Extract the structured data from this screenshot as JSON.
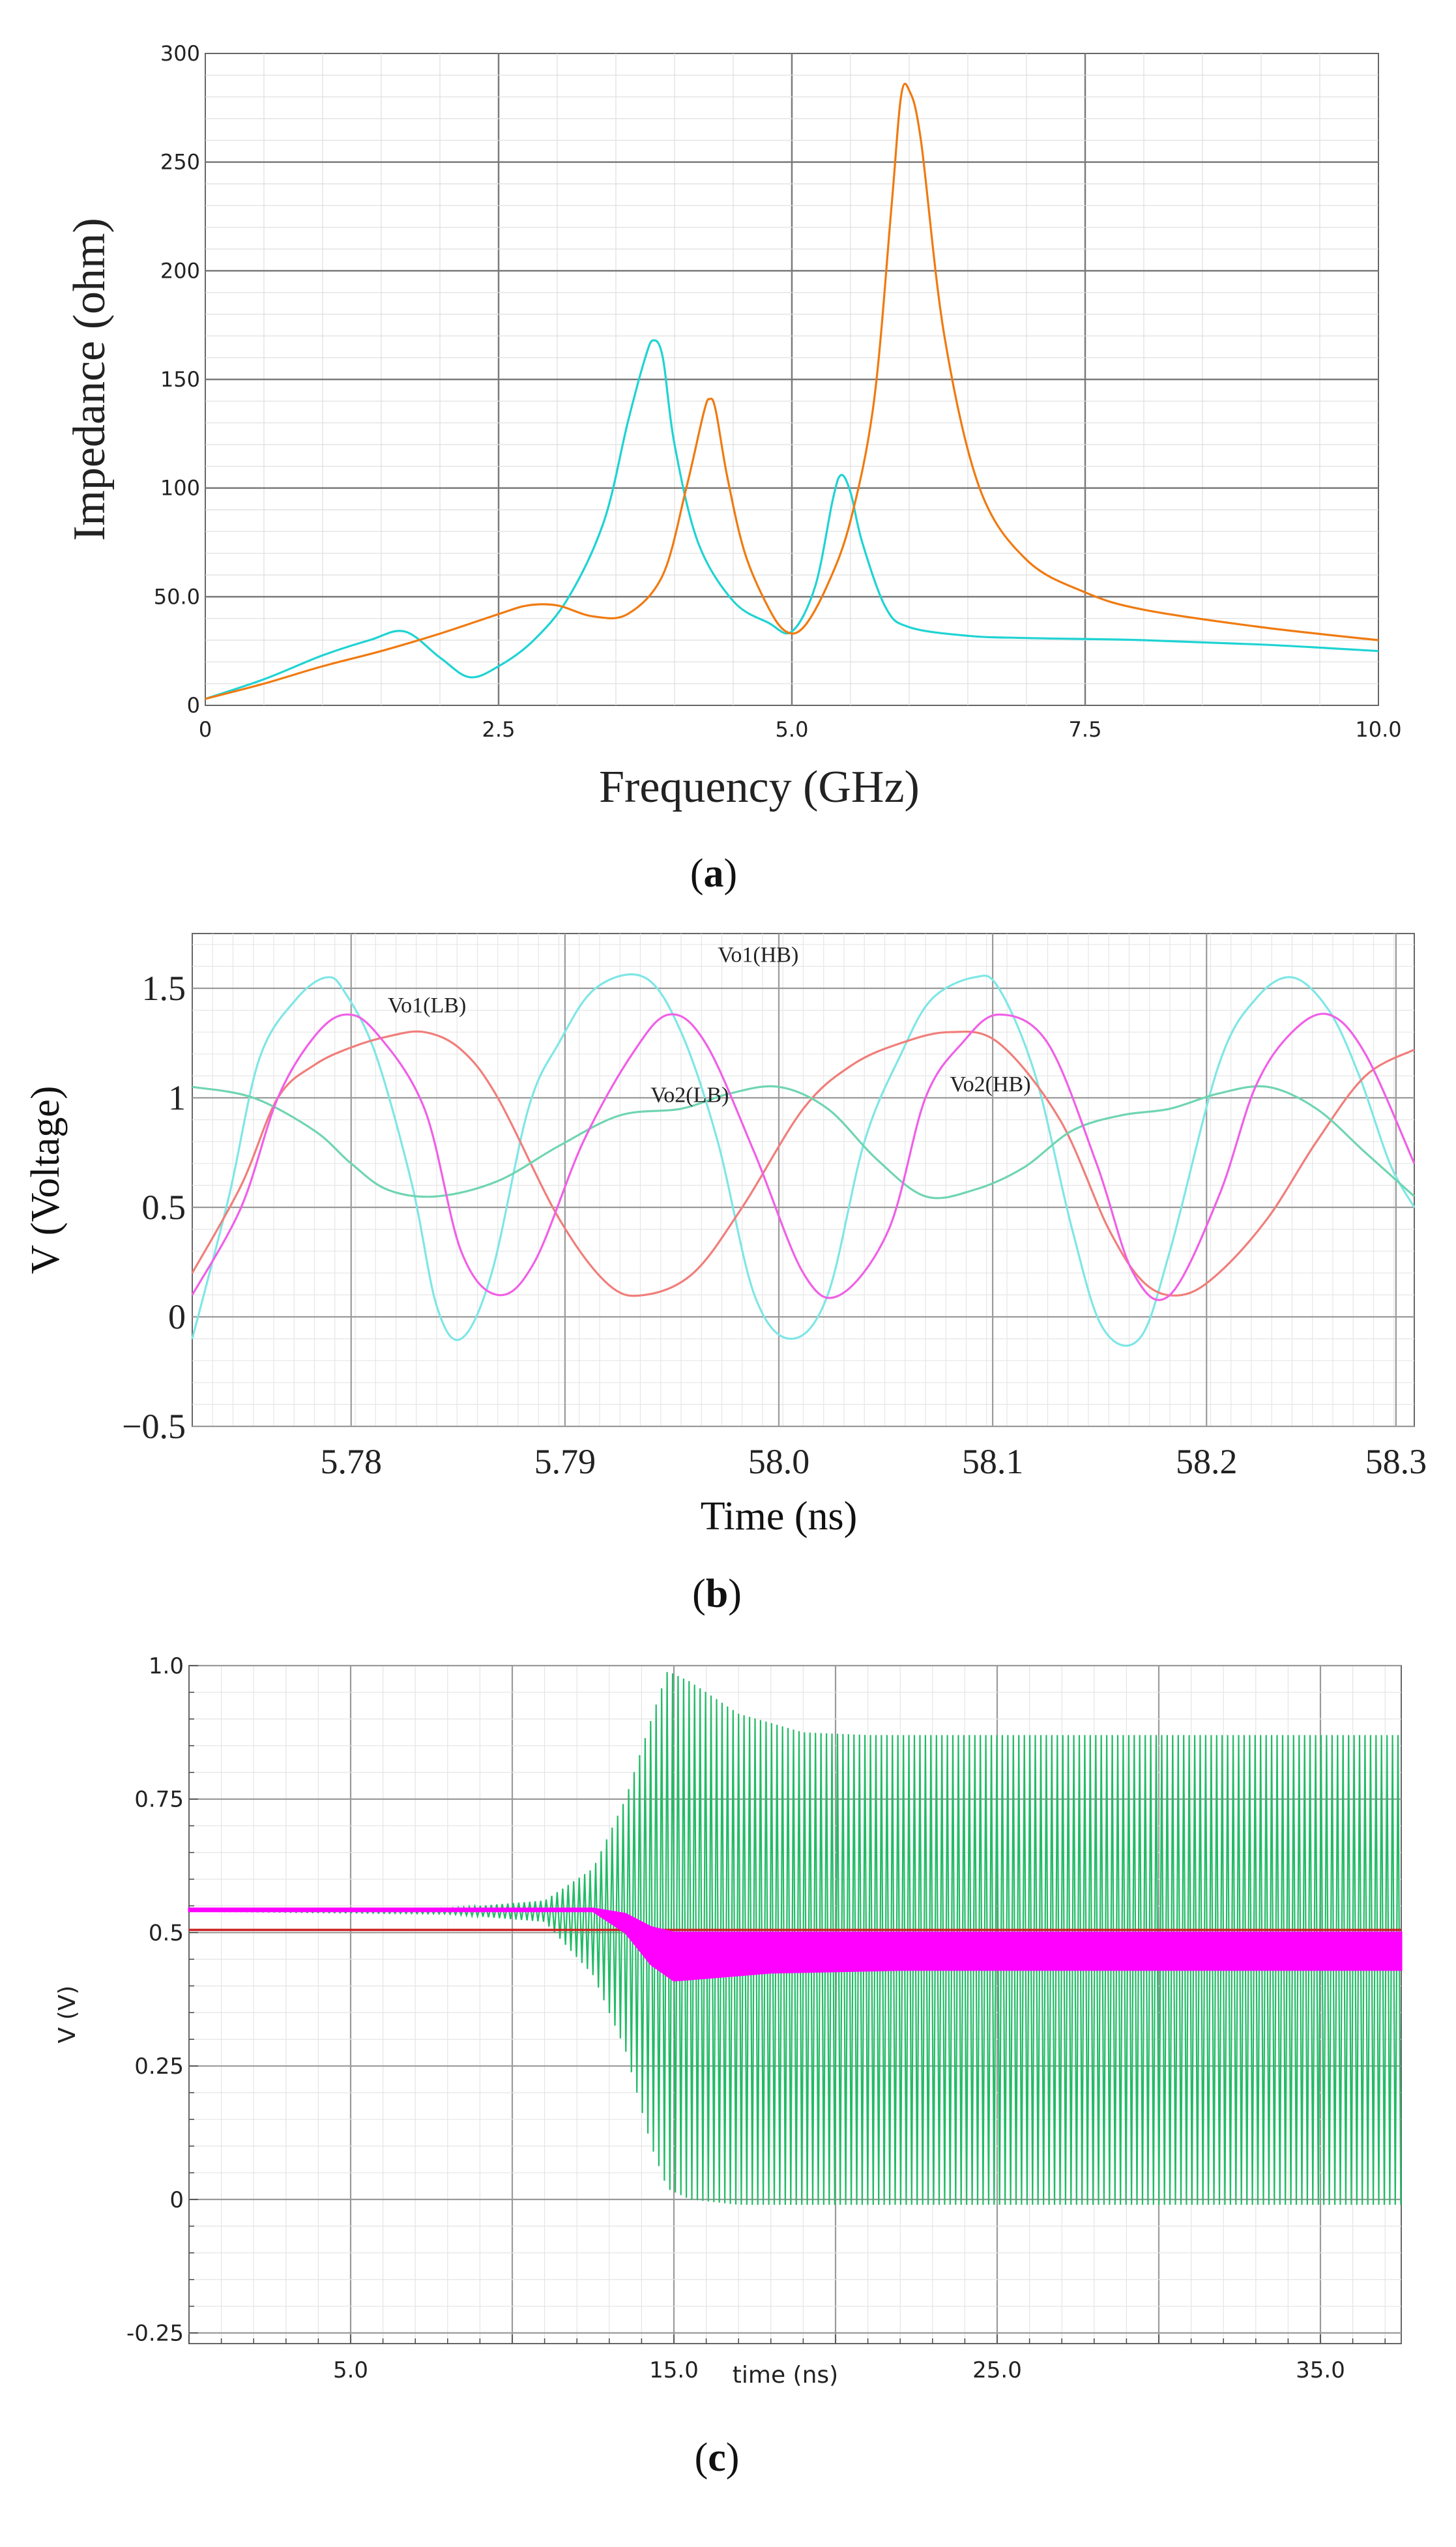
{
  "panels": {
    "a": {
      "caption_letter": "a",
      "chart_data": {
        "type": "line",
        "title": "",
        "xlabel": "Frequency (GHz)",
        "ylabel": "Impedance (ohm)",
        "xlim": [
          0,
          10
        ],
        "ylim": [
          0,
          300
        ],
        "xticks": [
          "0",
          "2.5",
          "5.0",
          "7.5",
          "10.0"
        ],
        "yticks": [
          "0",
          "50.0",
          "100",
          "150",
          "200",
          "250",
          "300"
        ],
        "xtick_values": [
          0,
          2.5,
          5,
          7.5,
          10
        ],
        "ytick_values": [
          0,
          50,
          100,
          150,
          200,
          250,
          300
        ],
        "grid": true,
        "series": [
          {
            "color": "#1fd3d3",
            "x": [
              0,
              0.5,
              1.0,
              1.4,
              1.7,
              2.0,
              2.25,
              2.5,
              2.8,
              3.1,
              3.4,
              3.6,
              3.75,
              3.82,
              3.9,
              4.0,
              4.2,
              4.5,
              4.8,
              5.0,
              5.2,
              5.35,
              5.42,
              5.5,
              5.6,
              5.8,
              6.0,
              6.5,
              7.0,
              8.0,
              9.0,
              10.0
            ],
            "y": [
              3,
              12,
              23,
              30,
              34,
              22,
              13,
              18,
              30,
              50,
              85,
              130,
              160,
              168,
              160,
              120,
              75,
              48,
              38,
              34,
              55,
              95,
              106,
              98,
              75,
              45,
              36,
              32,
              31,
              30,
              28,
              25
            ]
          },
          {
            "color": "#f07a10",
            "x": [
              0,
              0.5,
              1.0,
              1.5,
              2.0,
              2.5,
              2.75,
              3.0,
              3.3,
              3.6,
              3.9,
              4.1,
              4.25,
              4.3,
              4.35,
              4.45,
              4.6,
              4.8,
              4.95,
              5.1,
              5.3,
              5.5,
              5.7,
              5.85,
              5.93,
              6.0,
              6.1,
              6.3,
              6.6,
              7.0,
              7.5,
              8.0,
              9.0,
              10.0
            ],
            "y": [
              3,
              10,
              18,
              25,
              33,
              42,
              46,
              46,
              41,
              42,
              60,
              100,
              135,
              141,
              136,
              105,
              70,
              45,
              34,
              36,
              55,
              85,
              140,
              230,
              280,
              283,
              260,
              170,
              100,
              67,
              52,
              44,
              36,
              30
            ]
          }
        ]
      }
    },
    "b": {
      "caption_letter": "b",
      "chart_data": {
        "type": "line",
        "title": "",
        "xlabel": "Time (ns)",
        "ylabel": "V (Voltage)",
        "xlim": [
          0,
          1
        ],
        "ylim": [
          -0.5,
          1.75
        ],
        "xticks": [
          "5.78",
          "5.79",
          "58.0",
          "58.1",
          "58.2",
          "58.3"
        ],
        "xtick_values": [
          0.13,
          0.305,
          0.48,
          0.655,
          0.83,
          0.985
        ],
        "yticks": [
          "−0.5",
          "0",
          "0.5",
          "1",
          "1.5"
        ],
        "ytick_values": [
          -0.5,
          0,
          0.5,
          1,
          1.5
        ],
        "grid": true,
        "series": [
          {
            "name": "Vo1(HB)",
            "color": "#7fe6e6",
            "x": [
              0.0,
              0.03,
              0.055,
              0.085,
              0.11,
              0.125,
              0.15,
              0.18,
              0.2,
              0.22,
              0.245,
              0.275,
              0.3,
              0.33,
              0.37,
              0.4,
              0.43,
              0.46,
              0.49,
              0.52,
              0.55,
              0.58,
              0.605,
              0.64,
              0.66,
              0.69,
              0.72,
              0.745,
              0.775,
              0.8,
              0.84,
              0.87,
              0.9,
              0.93,
              0.955,
              0.98,
              1.0
            ],
            "y": [
              -0.1,
              0.55,
              1.18,
              1.45,
              1.55,
              1.48,
              1.2,
              0.6,
              0.05,
              -0.1,
              0.2,
              0.95,
              1.25,
              1.5,
              1.55,
              1.3,
              0.8,
              0.1,
              -0.1,
              0.1,
              0.8,
              1.2,
              1.45,
              1.55,
              1.5,
              1.1,
              0.4,
              -0.05,
              -0.1,
              0.3,
              1.15,
              1.45,
              1.55,
              1.4,
              1.1,
              0.7,
              0.5
            ]
          },
          {
            "name": "Vo1(LB)",
            "color": "#f07e7a",
            "x": [
              0.0,
              0.04,
              0.07,
              0.1,
              0.13,
              0.16,
              0.19,
              0.22,
              0.25,
              0.3,
              0.34,
              0.37,
              0.41,
              0.45,
              0.5,
              0.54,
              0.58,
              0.62,
              0.66,
              0.71,
              0.75,
              0.78,
              0.81,
              0.84,
              0.88,
              0.92,
              0.96,
              1.0
            ],
            "y": [
              0.2,
              0.6,
              1.0,
              1.15,
              1.23,
              1.28,
              1.3,
              1.22,
              1.0,
              0.45,
              0.15,
              0.1,
              0.2,
              0.5,
              0.95,
              1.15,
              1.25,
              1.3,
              1.25,
              0.9,
              0.4,
              0.15,
              0.1,
              0.2,
              0.45,
              0.8,
              1.1,
              1.22
            ]
          },
          {
            "name": "Vo2(LB)",
            "color": "#6fd5b0",
            "x": [
              0.0,
              0.05,
              0.1,
              0.13,
              0.16,
              0.2,
              0.25,
              0.3,
              0.35,
              0.4,
              0.44,
              0.48,
              0.52,
              0.56,
              0.6,
              0.64,
              0.68,
              0.72,
              0.76,
              0.8,
              0.84,
              0.88,
              0.92,
              0.96,
              1.0
            ],
            "y": [
              1.05,
              1.0,
              0.85,
              0.7,
              0.58,
              0.55,
              0.62,
              0.78,
              0.92,
              0.95,
              1.02,
              1.05,
              0.95,
              0.72,
              0.55,
              0.58,
              0.68,
              0.85,
              0.92,
              0.95,
              1.02,
              1.05,
              0.95,
              0.75,
              0.55
            ]
          },
          {
            "name": "Vo2(HB)",
            "color": "#f060e6",
            "x": [
              0.0,
              0.04,
              0.07,
              0.1,
              0.125,
              0.15,
              0.19,
              0.22,
              0.25,
              0.28,
              0.32,
              0.36,
              0.39,
              0.42,
              0.46,
              0.5,
              0.53,
              0.57,
              0.6,
              0.63,
              0.66,
              0.7,
              0.74,
              0.77,
              0.8,
              0.84,
              0.87,
              0.9,
              0.93,
              0.96,
              1.0
            ],
            "y": [
              0.1,
              0.5,
              1.0,
              1.28,
              1.38,
              1.3,
              0.95,
              0.3,
              0.1,
              0.25,
              0.8,
              1.2,
              1.38,
              1.25,
              0.75,
              0.2,
              0.1,
              0.4,
              1.0,
              1.25,
              1.38,
              1.25,
              0.7,
              0.2,
              0.1,
              0.55,
              1.05,
              1.3,
              1.38,
              1.2,
              0.7
            ]
          }
        ]
      }
    },
    "c": {
      "caption_letter": "c",
      "chart_data": {
        "type": "line",
        "title": "",
        "xlabel": "time (ns)",
        "ylabel": "V (V)",
        "xlim": [
          0,
          37.5
        ],
        "ylim": [
          -0.27,
          1.0
        ],
        "xticks": [
          "5.0",
          "15.0",
          "25.0",
          "35.0"
        ],
        "xtick_values": [
          5,
          15,
          25,
          35
        ],
        "yticks": [
          "-0.25",
          "0",
          "0.25",
          "0.5",
          "0.75",
          "1.0"
        ],
        "ytick_values": [
          -0.25,
          0,
          0.25,
          0.5,
          0.75,
          1.0
        ],
        "grid": true,
        "series": [
          {
            "color": "#22bb66",
            "description": "oscillation",
            "x": [
              0,
              8.0,
              11.0,
              12.5,
              13.5,
              14.3,
              14.8,
              15.5,
              17.0,
              19.0,
              21.0,
              37.5
            ],
            "upper": [
              0.54,
              0.545,
              0.56,
              0.62,
              0.75,
              0.9,
              0.99,
              0.97,
              0.91,
              0.875,
              0.87,
              0.87
            ],
            "lower": [
              0.54,
              0.535,
              0.52,
              0.42,
              0.28,
              0.1,
              0.02,
              0.0,
              -0.01,
              -0.01,
              -0.01,
              -0.01
            ]
          },
          {
            "color": "#ff00ff",
            "description": "band",
            "x": [
              0,
              12.5,
              13.5,
              14.3,
              15.0,
              16.0,
              18.0,
              22.0,
              37.5
            ],
            "upper": [
              0.545,
              0.545,
              0.535,
              0.51,
              0.5,
              0.5,
              0.5,
              0.5,
              0.5
            ],
            "lower": [
              0.54,
              0.54,
              0.5,
              0.44,
              0.41,
              0.415,
              0.425,
              0.43,
              0.43
            ]
          },
          {
            "color": "#cc2222",
            "description": "flat",
            "x": [
              0,
              37.5
            ],
            "y": [
              0.505,
              0.505
            ]
          }
        ]
      }
    }
  }
}
